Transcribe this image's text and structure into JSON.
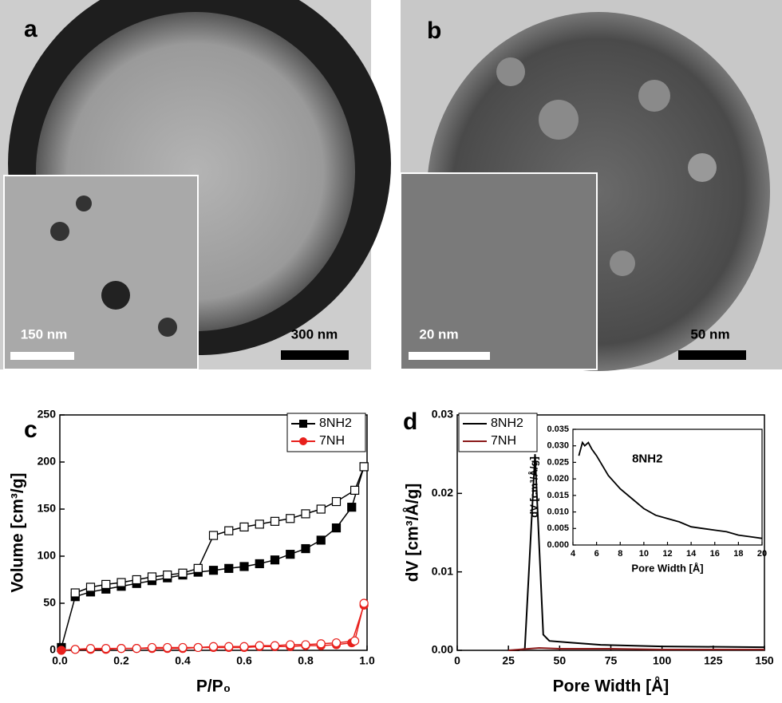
{
  "panels": [
    {
      "label": "a",
      "scale_bar": "300 nm",
      "inset_scale_bar": "150 nm"
    },
    {
      "label": "b",
      "scale_bar": "50 nm",
      "inset_scale_bar": "20 nm"
    }
  ],
  "chart_data": [
    {
      "type": "line",
      "panel_label": "c",
      "xlabel": "P/P₀",
      "ylabel": "Volume [cm³/g]",
      "xlim": [
        0,
        1
      ],
      "ylim": [
        0,
        250
      ],
      "xticks": [
        {
          "value": 0,
          "label": "0.0"
        },
        0.2,
        0.4,
        0.6,
        0.8,
        {
          "value": 1,
          "label": "1.0"
        }
      ],
      "yticks": [
        0,
        50,
        100,
        150,
        200,
        250
      ],
      "legend": "upper right",
      "series": [
        {
          "name": "8NH2",
          "color": "#000000",
          "marker": "square",
          "x": [
            0.005,
            0.05,
            0.1,
            0.15,
            0.2,
            0.25,
            0.3,
            0.35,
            0.4,
            0.45,
            0.5,
            0.55,
            0.6,
            0.65,
            0.7,
            0.75,
            0.8,
            0.85,
            0.9,
            0.95,
            0.99
          ],
          "values": [
            3,
            57,
            62,
            65,
            68,
            71,
            74,
            77,
            80,
            83,
            85,
            87,
            89,
            92,
            96,
            102,
            108,
            117,
            130,
            152,
            195
          ],
          "desorption_x": [
            0.99,
            0.96,
            0.9,
            0.85,
            0.8,
            0.75,
            0.7,
            0.65,
            0.6,
            0.55,
            0.5,
            0.45,
            0.4,
            0.35,
            0.3,
            0.25,
            0.2,
            0.15,
            0.1,
            0.05
          ],
          "desorption_values": [
            195,
            170,
            158,
            150,
            145,
            140,
            137,
            134,
            131,
            127,
            122,
            87,
            82,
            80,
            78,
            75,
            72,
            70,
            67,
            61
          ]
        },
        {
          "name": "7NH",
          "color": "#e8201c",
          "marker": "circle",
          "x": [
            0.005,
            0.05,
            0.1,
            0.15,
            0.2,
            0.25,
            0.3,
            0.35,
            0.4,
            0.45,
            0.5,
            0.55,
            0.6,
            0.65,
            0.7,
            0.75,
            0.8,
            0.85,
            0.9,
            0.95,
            0.99
          ],
          "values": [
            0,
            1,
            1,
            1,
            2,
            2,
            2,
            2,
            2,
            3,
            3,
            3,
            3,
            4,
            4,
            4,
            5,
            5,
            6,
            8,
            48
          ],
          "desorption_x": [
            0.99,
            0.96,
            0.9,
            0.85,
            0.8,
            0.75,
            0.7,
            0.65,
            0.6,
            0.55,
            0.5,
            0.45,
            0.4,
            0.35,
            0.3,
            0.25,
            0.2,
            0.15,
            0.1,
            0.05
          ],
          "desorption_values": [
            50,
            10,
            8,
            7,
            6,
            6,
            5,
            5,
            4,
            4,
            4,
            3,
            3,
            3,
            3,
            2,
            2,
            2,
            2,
            1
          ]
        }
      ]
    },
    {
      "type": "line",
      "panel_label": "d",
      "xlabel": "Pore Width [Å]",
      "ylabel": "dV [cm³/Å/g]",
      "xlim": [
        0,
        150
      ],
      "ylim": [
        0,
        0.03
      ],
      "xticks": [
        0,
        25,
        50,
        75,
        100,
        125,
        150
      ],
      "yticks": [
        {
          "value": 0,
          "label": "0.00"
        },
        0.01,
        0.02,
        {
          "value": 0.03,
          "label": "0.03"
        }
      ],
      "legend": "upper left",
      "series": [
        {
          "name": "8NH2",
          "color": "#000000",
          "x": [
            25,
            30,
            33,
            35,
            38,
            42,
            45,
            55,
            70,
            100,
            150
          ],
          "values": [
            0,
            0,
            0.0002,
            0.01,
            0.025,
            0.002,
            0.0012,
            0.001,
            0.0007,
            0.0005,
            0.0004
          ]
        },
        {
          "name": "7NH",
          "color": "#8b1a1a",
          "x": [
            25,
            35,
            40,
            50,
            75,
            100,
            150
          ],
          "values": [
            0,
            0.0002,
            0.0003,
            0.0002,
            0.0002,
            0.0001,
            0.0001
          ]
        }
      ]
    },
    {
      "type": "line",
      "annotation": "8NH2",
      "xlabel": "Pore Width [Å]",
      "ylabel": "dV [cm³/Å/g]",
      "xlim": [
        4,
        20
      ],
      "ylim": [
        0,
        0.035
      ],
      "xticks": [
        4,
        6,
        8,
        10,
        12,
        14,
        16,
        18,
        20
      ],
      "yticks": [
        {
          "value": 0,
          "label": "0.000"
        },
        0.005,
        {
          "value": 0.01,
          "label": "0.010"
        },
        0.015,
        {
          "value": 0.02,
          "label": "0.020"
        },
        0.025,
        {
          "value": 0.03,
          "label": "0.030"
        },
        0.035
      ],
      "series": [
        {
          "color": "#000000",
          "x": [
            4.5,
            4.8,
            5.0,
            5.3,
            5.6,
            6,
            7,
            8,
            9,
            10,
            11,
            12,
            13,
            14,
            15,
            16,
            17,
            18,
            19,
            20
          ],
          "values": [
            0.027,
            0.031,
            0.03,
            0.031,
            0.029,
            0.027,
            0.021,
            0.017,
            0.014,
            0.011,
            0.009,
            0.008,
            0.007,
            0.0055,
            0.005,
            0.0045,
            0.004,
            0.003,
            0.0025,
            0.002
          ]
        }
      ]
    }
  ]
}
